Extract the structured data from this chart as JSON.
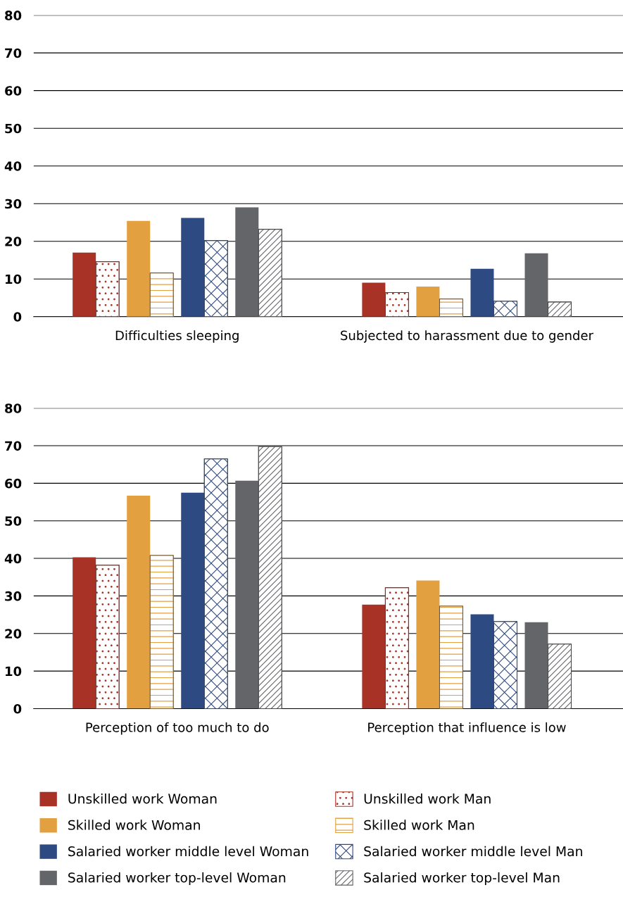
{
  "chart_data": [
    {
      "type": "bar",
      "categories": [
        "Difficulties sleeping",
        "Subjected to harassment due to gender"
      ],
      "ylim": [
        0,
        80
      ],
      "yticks": [
        0,
        10,
        20,
        30,
        40,
        50,
        60,
        70,
        80
      ],
      "grid": "y",
      "legend": false,
      "series": [
        {
          "color": "#a93226",
          "values": [
            17.0,
            9.0
          ]
        },
        {
          "color": "#a93226",
          "values": [
            14.6,
            6.4
          ]
        },
        {
          "color": "#e3a040",
          "values": [
            25.4,
            8.0
          ]
        },
        {
          "color": "#e3a040",
          "values": [
            11.6,
            4.7
          ]
        },
        {
          "color": "#2e4a82",
          "values": [
            26.2,
            12.7
          ]
        },
        {
          "color": "#2e4a82",
          "values": [
            20.2,
            4.1
          ]
        },
        {
          "color": "#646569",
          "values": [
            29.0,
            16.8
          ]
        },
        {
          "color": "#646569",
          "values": [
            23.2,
            3.9
          ]
        }
      ]
    },
    {
      "type": "bar",
      "categories": [
        "Perception of too much to do",
        "Perception that influence is low"
      ],
      "ylim": [
        0,
        80
      ],
      "yticks": [
        0,
        10,
        20,
        30,
        40,
        50,
        60,
        70,
        80
      ],
      "grid": "y",
      "legend": "bottom",
      "series": [
        {
          "name": "Unskilled work Woman",
          "color": "#a93226",
          "values": [
            40.3,
            27.7
          ]
        },
        {
          "name": "Unskilled work Man",
          "color": "#a93226",
          "values": [
            38.2,
            32.2
          ]
        },
        {
          "name": "Skilled work Woman",
          "color": "#e3a040",
          "values": [
            56.7,
            34.1
          ]
        },
        {
          "name": "Skilled work Man",
          "color": "#e3a040",
          "values": [
            40.8,
            27.3
          ]
        },
        {
          "name": "Salaried worker middle level Woman",
          "color": "#2e4a82",
          "values": [
            57.5,
            25.1
          ]
        },
        {
          "name": "Salaried worker middle level Man",
          "color": "#2e4a82",
          "values": [
            66.5,
            23.2
          ]
        },
        {
          "name": "Salaried worker top-level Woman",
          "color": "#646569",
          "values": [
            60.7,
            23.0
          ]
        },
        {
          "name": "Salaried worker top-level Man",
          "color": "#646569",
          "values": [
            69.8,
            17.2
          ]
        }
      ]
    }
  ]
}
